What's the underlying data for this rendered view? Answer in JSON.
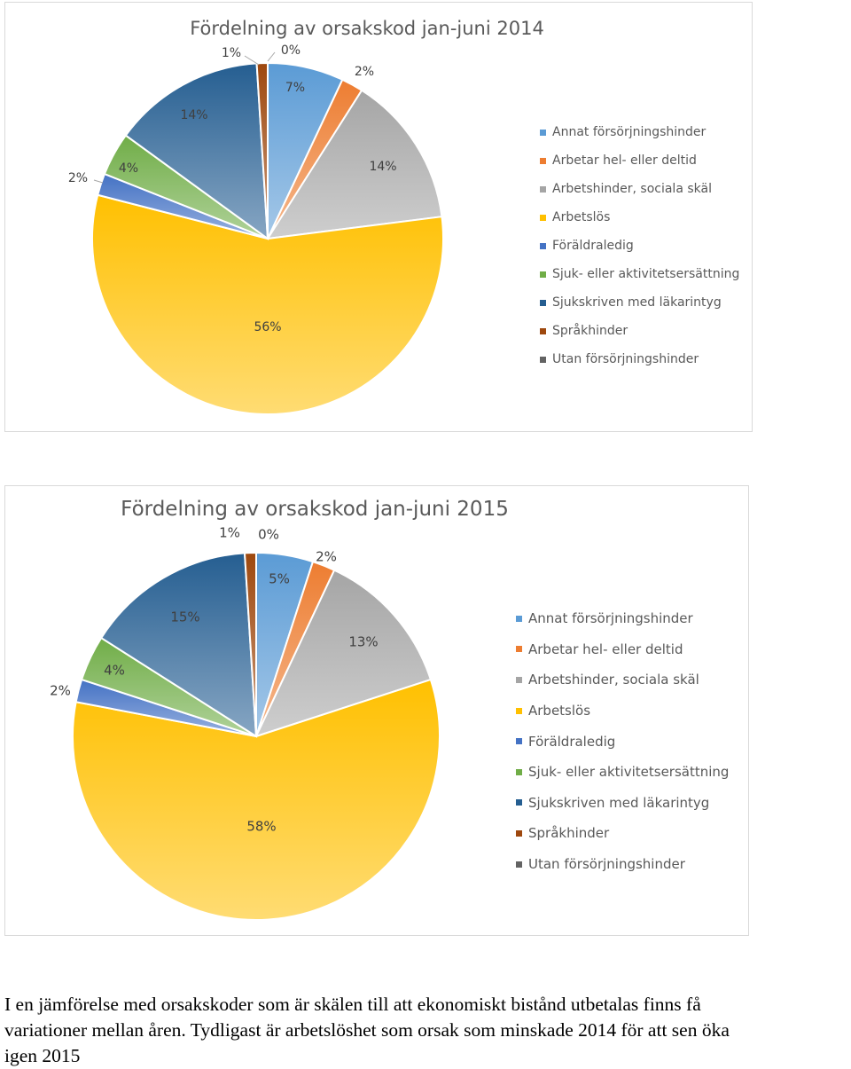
{
  "chart_data": [
    {
      "type": "pie",
      "title": "Fördelning av orsakskod jan-juni 2014",
      "categories": [
        "Annat försörjningshinder",
        "Arbetar hel- eller deltid",
        "Arbetshinder, sociala skäl",
        "Arbetslös",
        "Föräldraledig",
        "Sjuk- eller aktivitetsersättning",
        "Sjukskriven med läkarintyg",
        "Språkhinder",
        "Utan försörjningshinder"
      ],
      "values": [
        7,
        2,
        14,
        56,
        2,
        4,
        14,
        1,
        0
      ],
      "labels": [
        "7%",
        "2%",
        "14%",
        "56%",
        "2%",
        "4%",
        "14%",
        "1%",
        "0%"
      ],
      "legend_position": "right"
    },
    {
      "type": "pie",
      "title": "Fördelning av orsakskod jan-juni 2015",
      "categories": [
        "Annat försörjningshinder",
        "Arbetar hel- eller deltid",
        "Arbetshinder, sociala skäl",
        "Arbetslös",
        "Föräldraledig",
        "Sjuk- eller aktivitetsersättning",
        "Sjukskriven med läkarintyg",
        "Språkhinder",
        "Utan försörjningshinder"
      ],
      "values": [
        5,
        2,
        13,
        58,
        2,
        4,
        15,
        1,
        0
      ],
      "labels": [
        "5%",
        "2%",
        "13%",
        "58%",
        "2%",
        "4%",
        "15%",
        "1%",
        "0%"
      ],
      "legend_position": "right"
    }
  ],
  "colors": [
    "#5b9bd5",
    "#ed7d31",
    "#a5a5a5",
    "#ffc000",
    "#4472c4",
    "#70ad47",
    "#255e91",
    "#9e480e",
    "#636363"
  ],
  "caption": {
    "line1": "I en jämförelse med orsakskoder som är skälen till att ekonomiskt bistånd utbetalas finns få",
    "line2": "variationer mellan åren. Tydligast är arbetslöshet som orsak som minskade 2014 för att sen öka",
    "line3": "igen 2015"
  }
}
